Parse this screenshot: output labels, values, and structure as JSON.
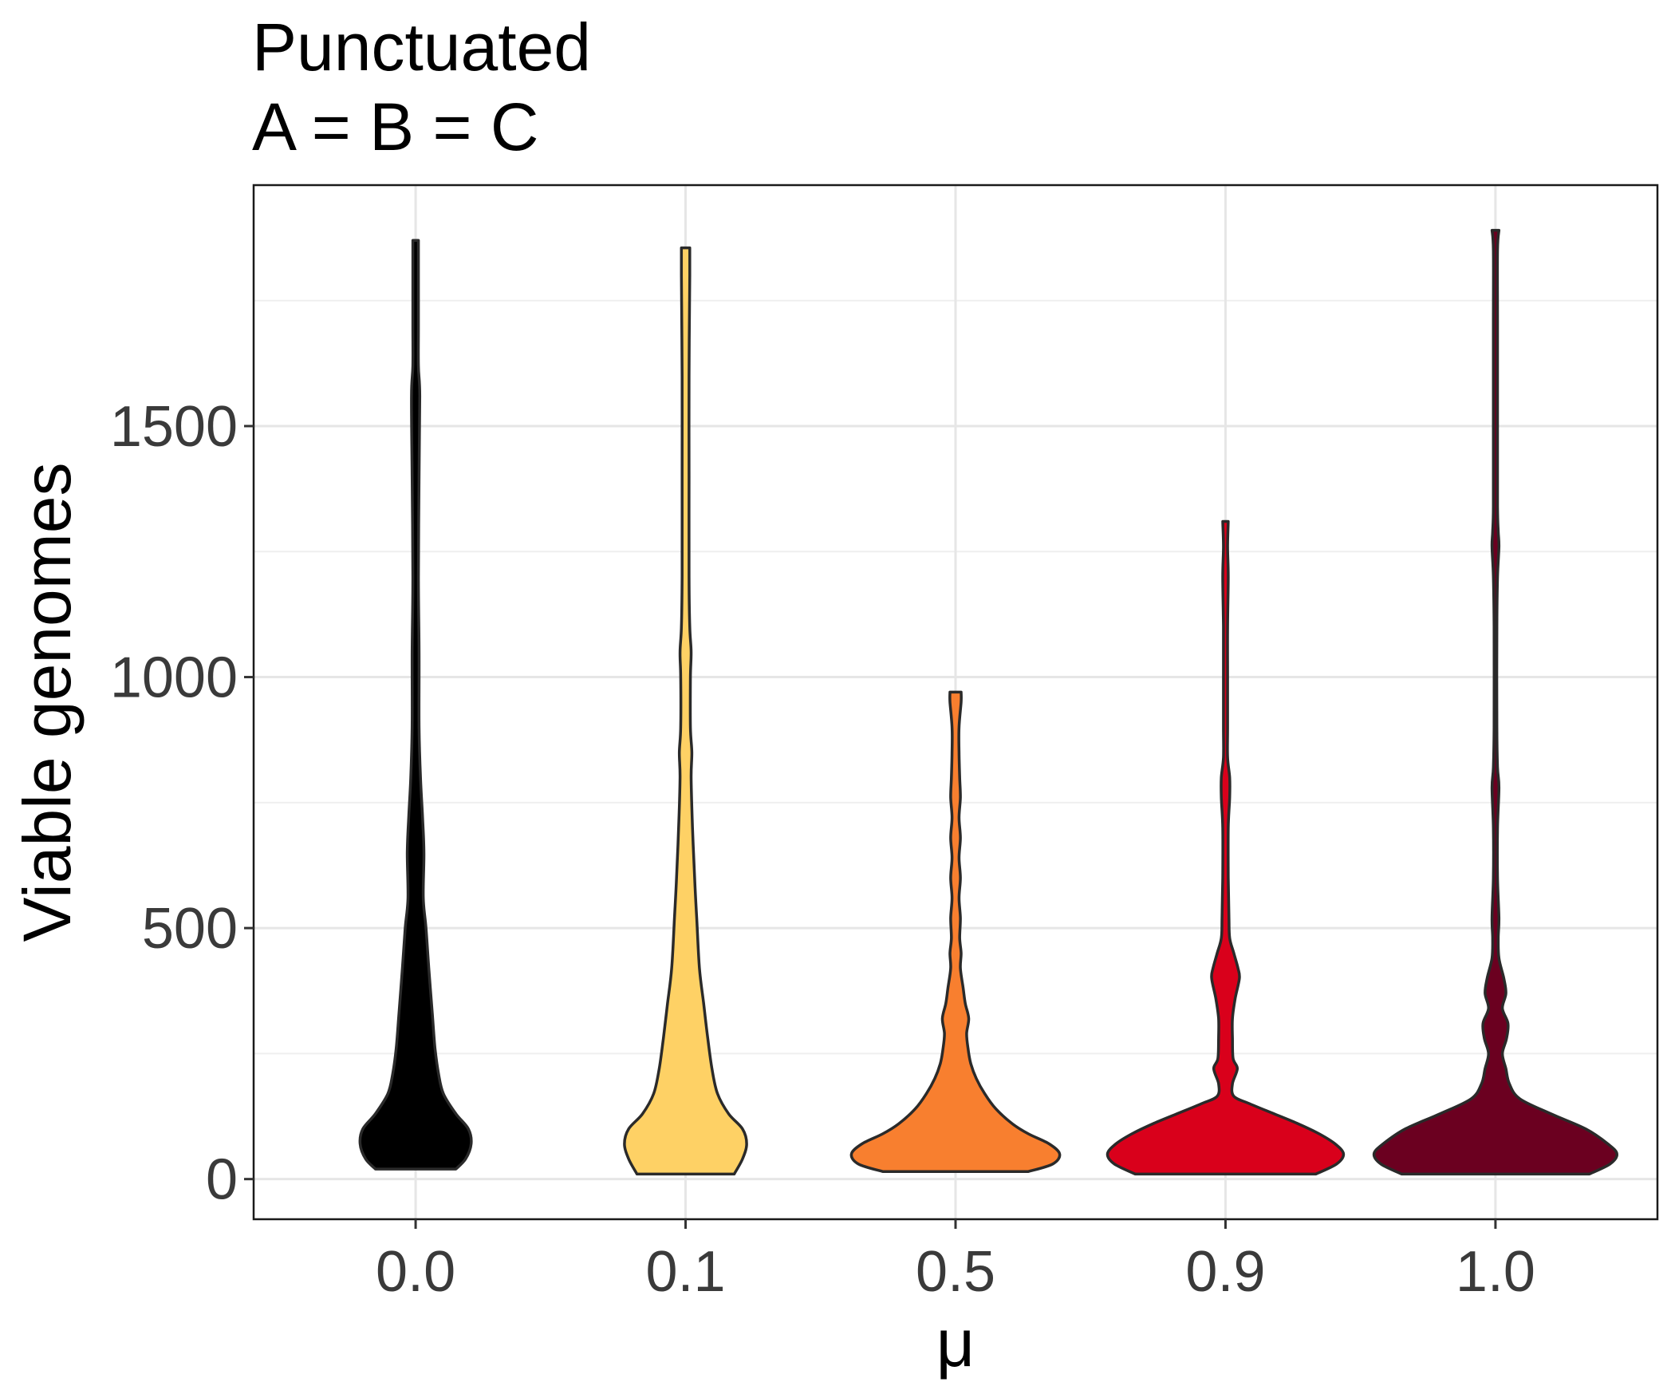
{
  "chart_data": {
    "type": "violin",
    "title": "Punctuated",
    "subtitle": "A = B = C",
    "xlabel": "μ",
    "ylabel": "Viable genomes",
    "categories": [
      "0.0",
      "0.1",
      "0.5",
      "0.9",
      "1.0"
    ],
    "ylim": [
      -80,
      1980
    ],
    "yticks": [
      0,
      500,
      1000,
      1500
    ],
    "ytick_labels": [
      "0",
      "500",
      "1000",
      "1500"
    ],
    "grid": true,
    "series": [
      {
        "category": "0.0",
        "color": "#000000",
        "min": 20,
        "max": 1870,
        "density": [
          [
            20,
            0.58
          ],
          [
            40,
            0.72
          ],
          [
            70,
            0.8
          ],
          [
            100,
            0.76
          ],
          [
            130,
            0.58
          ],
          [
            170,
            0.4
          ],
          [
            210,
            0.33
          ],
          [
            260,
            0.28
          ],
          [
            330,
            0.24
          ],
          [
            420,
            0.19
          ],
          [
            500,
            0.15
          ],
          [
            560,
            0.11
          ],
          [
            650,
            0.12
          ],
          [
            720,
            0.1
          ],
          [
            800,
            0.07
          ],
          [
            900,
            0.05
          ],
          [
            1050,
            0.05
          ],
          [
            1200,
            0.04
          ],
          [
            1400,
            0.05
          ],
          [
            1560,
            0.06
          ],
          [
            1620,
            0.04
          ],
          [
            1700,
            0.04
          ],
          [
            1800,
            0.04
          ],
          [
            1870,
            0.04
          ]
        ]
      },
      {
        "category": "0.1",
        "color": "#fed165",
        "min": 10,
        "max": 1855,
        "density": [
          [
            10,
            0.7
          ],
          [
            40,
            0.82
          ],
          [
            70,
            0.88
          ],
          [
            100,
            0.82
          ],
          [
            130,
            0.62
          ],
          [
            170,
            0.46
          ],
          [
            220,
            0.38
          ],
          [
            280,
            0.32
          ],
          [
            350,
            0.26
          ],
          [
            420,
            0.2
          ],
          [
            520,
            0.16
          ],
          [
            600,
            0.13
          ],
          [
            700,
            0.1
          ],
          [
            800,
            0.08
          ],
          [
            850,
            0.09
          ],
          [
            900,
            0.07
          ],
          [
            1000,
            0.07
          ],
          [
            1050,
            0.08
          ],
          [
            1100,
            0.06
          ],
          [
            1200,
            0.05
          ],
          [
            1400,
            0.05
          ],
          [
            1600,
            0.05
          ],
          [
            1800,
            0.06
          ],
          [
            1855,
            0.06
          ]
        ]
      },
      {
        "category": "0.5",
        "color": "#f87f2f",
        "min": 15,
        "max": 970,
        "density": [
          [
            15,
            1.05
          ],
          [
            30,
            1.4
          ],
          [
            50,
            1.5
          ],
          [
            70,
            1.35
          ],
          [
            90,
            1.05
          ],
          [
            110,
            0.82
          ],
          [
            140,
            0.58
          ],
          [
            170,
            0.42
          ],
          [
            200,
            0.3
          ],
          [
            230,
            0.22
          ],
          [
            260,
            0.18
          ],
          [
            290,
            0.16
          ],
          [
            320,
            0.19
          ],
          [
            350,
            0.14
          ],
          [
            380,
            0.11
          ],
          [
            420,
            0.07
          ],
          [
            450,
            0.08
          ],
          [
            480,
            0.06
          ],
          [
            520,
            0.07
          ],
          [
            560,
            0.05
          ],
          [
            600,
            0.07
          ],
          [
            640,
            0.05
          ],
          [
            680,
            0.07
          ],
          [
            720,
            0.05
          ],
          [
            760,
            0.07
          ],
          [
            800,
            0.06
          ],
          [
            850,
            0.05
          ],
          [
            900,
            0.05
          ],
          [
            950,
            0.08
          ],
          [
            970,
            0.08
          ]
        ]
      },
      {
        "category": "0.9",
        "color": "#d9001b",
        "min": 10,
        "max": 1310,
        "density": [
          [
            10,
            1.3
          ],
          [
            30,
            1.6
          ],
          [
            50,
            1.7
          ],
          [
            70,
            1.58
          ],
          [
            90,
            1.35
          ],
          [
            110,
            1.05
          ],
          [
            130,
            0.7
          ],
          [
            150,
            0.35
          ],
          [
            165,
            0.12
          ],
          [
            190,
            0.1
          ],
          [
            220,
            0.17
          ],
          [
            240,
            0.11
          ],
          [
            280,
            0.1
          ],
          [
            320,
            0.1
          ],
          [
            360,
            0.14
          ],
          [
            400,
            0.2
          ],
          [
            420,
            0.18
          ],
          [
            450,
            0.12
          ],
          [
            480,
            0.06
          ],
          [
            520,
            0.05
          ],
          [
            600,
            0.04
          ],
          [
            700,
            0.04
          ],
          [
            760,
            0.06
          ],
          [
            800,
            0.06
          ],
          [
            840,
            0.03
          ],
          [
            900,
            0.03
          ],
          [
            1000,
            0.03
          ],
          [
            1100,
            0.03
          ],
          [
            1200,
            0.04
          ],
          [
            1260,
            0.03
          ],
          [
            1310,
            0.04
          ]
        ]
      },
      {
        "category": "1.0",
        "color": "#6b0020",
        "min": 10,
        "max": 1890,
        "density": [
          [
            10,
            1.35
          ],
          [
            30,
            1.65
          ],
          [
            50,
            1.75
          ],
          [
            70,
            1.62
          ],
          [
            100,
            1.3
          ],
          [
            130,
            0.8
          ],
          [
            160,
            0.35
          ],
          [
            190,
            0.2
          ],
          [
            220,
            0.15
          ],
          [
            250,
            0.1
          ],
          [
            280,
            0.16
          ],
          [
            310,
            0.18
          ],
          [
            340,
            0.1
          ],
          [
            370,
            0.15
          ],
          [
            400,
            0.12
          ],
          [
            440,
            0.05
          ],
          [
            480,
            0.04
          ],
          [
            520,
            0.05
          ],
          [
            600,
            0.03
          ],
          [
            700,
            0.03
          ],
          [
            780,
            0.05
          ],
          [
            820,
            0.03
          ],
          [
            900,
            0.02
          ],
          [
            1100,
            0.02
          ],
          [
            1200,
            0.03
          ],
          [
            1260,
            0.05
          ],
          [
            1290,
            0.04
          ],
          [
            1340,
            0.03
          ],
          [
            1500,
            0.03
          ],
          [
            1700,
            0.03
          ],
          [
            1850,
            0.03
          ],
          [
            1890,
            0.05
          ]
        ]
      }
    ]
  }
}
